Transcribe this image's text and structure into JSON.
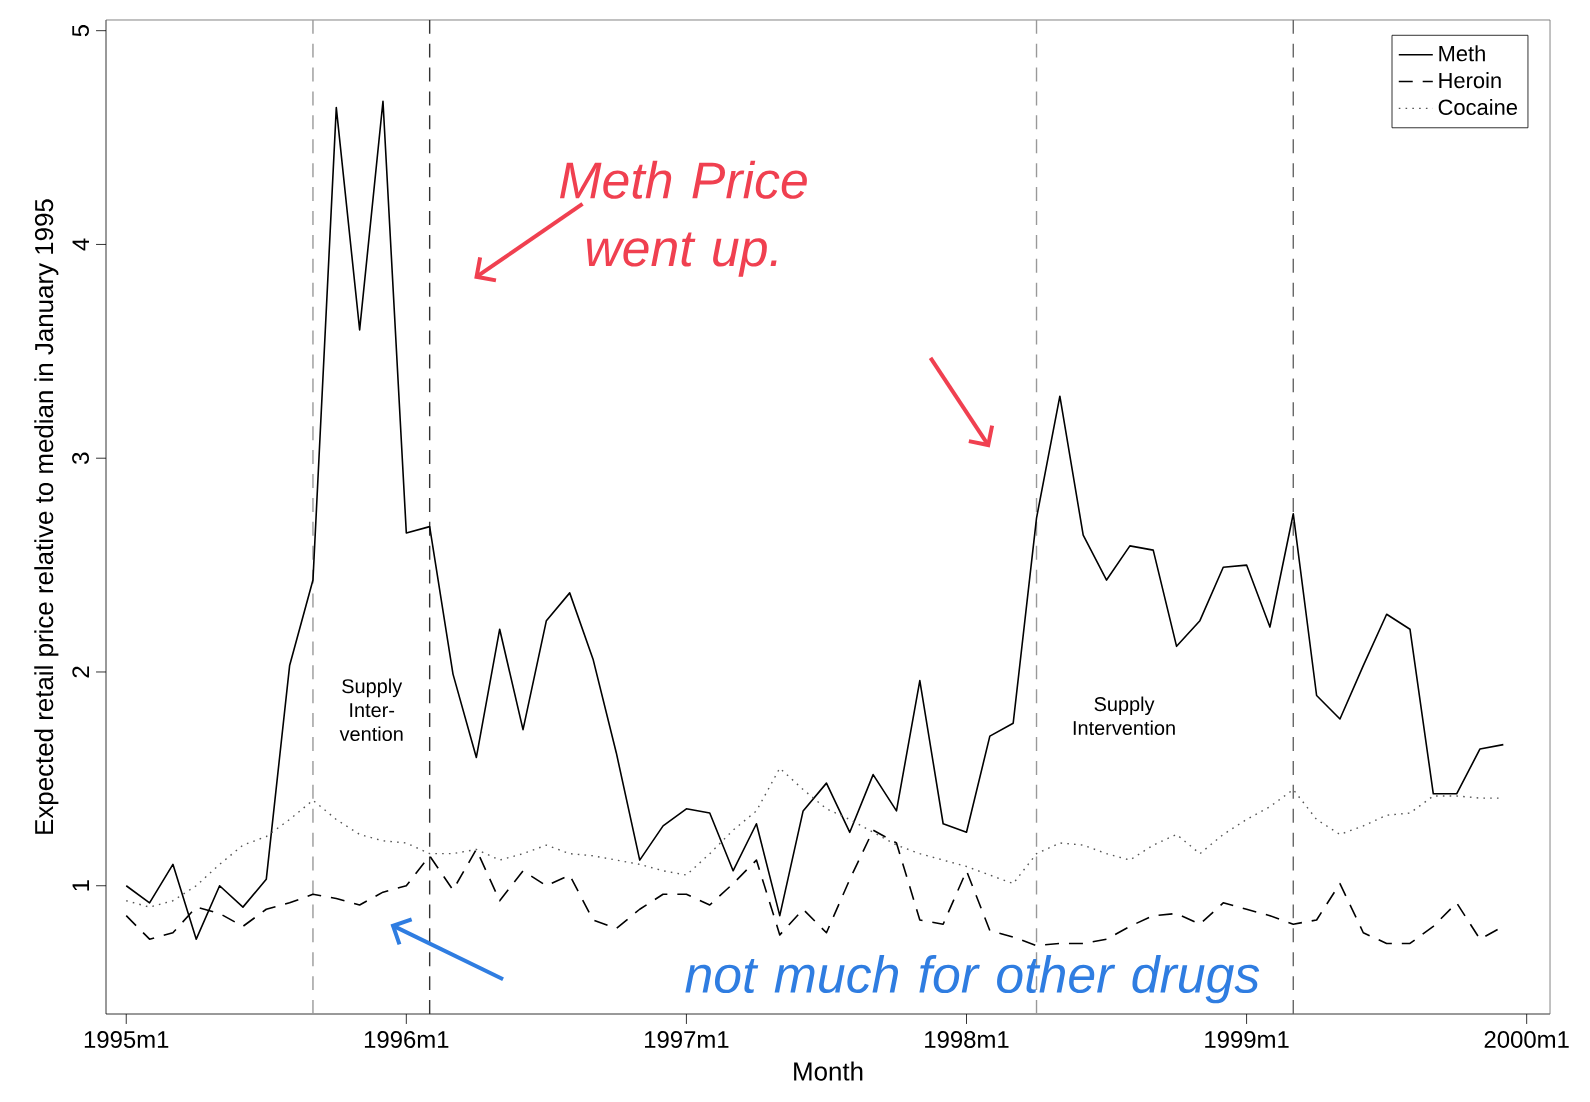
{
  "chart_data": {
    "type": "line",
    "xlabel": "Month",
    "ylabel": "Expected retail price relative to median in January 1995",
    "x": [
      "1995-01",
      "1995-02",
      "1995-03",
      "1995-04",
      "1995-05",
      "1995-06",
      "1995-07",
      "1995-08",
      "1995-09",
      "1995-10",
      "1995-11",
      "1995-12",
      "1996-01",
      "1996-02",
      "1996-03",
      "1996-04",
      "1996-05",
      "1996-06",
      "1996-07",
      "1996-08",
      "1996-09",
      "1996-10",
      "1996-11",
      "1996-12",
      "1997-01",
      "1997-02",
      "1997-03",
      "1997-04",
      "1997-05",
      "1997-06",
      "1997-07",
      "1997-08",
      "1997-09",
      "1997-10",
      "1997-11",
      "1997-12",
      "1998-01",
      "1998-02",
      "1998-03",
      "1998-04",
      "1998-05",
      "1998-06",
      "1998-07",
      "1998-08",
      "1998-09",
      "1998-10",
      "1998-11",
      "1998-12",
      "1999-01",
      "1999-02",
      "1999-03",
      "1999-04",
      "1999-05",
      "1999-06",
      "1999-07",
      "1999-08",
      "1999-09",
      "1999-10",
      "1999-11",
      "1999-12"
    ],
    "series": [
      {
        "name": "Meth",
        "color": "#000000",
        "line_style": "solid",
        "values": [
          1.0,
          0.92,
          1.1,
          0.75,
          1.0,
          0.9,
          1.03,
          2.03,
          2.43,
          4.64,
          3.6,
          4.67,
          2.65,
          2.68,
          1.99,
          1.6,
          2.2,
          1.73,
          2.24,
          2.37,
          2.06,
          1.62,
          1.12,
          1.28,
          1.36,
          1.34,
          1.07,
          1.29,
          0.86,
          1.35,
          1.48,
          1.25,
          1.52,
          1.35,
          1.96,
          1.29,
          1.25,
          1.7,
          1.76,
          2.72,
          3.29,
          2.64,
          2.43,
          2.59,
          2.57,
          2.12,
          2.24,
          2.49,
          2.5,
          2.21,
          2.74,
          1.89,
          1.78,
          2.03,
          2.27,
          2.2,
          1.43,
          1.43,
          1.64,
          1.66
        ]
      },
      {
        "name": "Heroin",
        "color": "#000000",
        "line_style": "dashed",
        "values": [
          0.86,
          0.75,
          0.78,
          0.9,
          0.87,
          0.81,
          0.89,
          0.92,
          0.96,
          0.94,
          0.91,
          0.97,
          1.0,
          1.14,
          0.98,
          1.17,
          0.93,
          1.07,
          1.0,
          1.05,
          0.84,
          0.8,
          0.89,
          0.96,
          0.96,
          0.91,
          1.01,
          1.12,
          0.77,
          0.89,
          0.78,
          1.03,
          1.26,
          1.2,
          0.84,
          0.82,
          1.07,
          0.79,
          0.76,
          0.72,
          0.73,
          0.73,
          0.75,
          0.81,
          0.86,
          0.87,
          0.82,
          0.92,
          0.89,
          0.86,
          0.82,
          0.84,
          1.01,
          0.78,
          0.73,
          0.73,
          0.81,
          0.92,
          0.75,
          0.81
        ]
      },
      {
        "name": "Cocaine",
        "color": "#555555",
        "line_style": "dotted",
        "values": [
          0.93,
          0.9,
          0.93,
          1.0,
          1.1,
          1.19,
          1.23,
          1.31,
          1.4,
          1.31,
          1.24,
          1.21,
          1.2,
          1.15,
          1.15,
          1.17,
          1.12,
          1.15,
          1.19,
          1.15,
          1.14,
          1.12,
          1.1,
          1.07,
          1.05,
          1.15,
          1.26,
          1.35,
          1.55,
          1.45,
          1.36,
          1.31,
          1.25,
          1.19,
          1.15,
          1.12,
          1.09,
          1.05,
          1.01,
          1.15,
          1.2,
          1.19,
          1.15,
          1.12,
          1.19,
          1.24,
          1.15,
          1.24,
          1.31,
          1.37,
          1.45,
          1.31,
          1.24,
          1.28,
          1.33,
          1.34,
          1.42,
          1.42,
          1.41,
          1.41
        ]
      }
    ],
    "xlim": [
      "1994-12-05",
      "2000-02-01"
    ],
    "xticks": [
      {
        "value": "1995-01",
        "label": "1995m1"
      },
      {
        "value": "1996-01",
        "label": "1996m1"
      },
      {
        "value": "1997-01",
        "label": "1997m1"
      },
      {
        "value": "1998-01",
        "label": "1998m1"
      },
      {
        "value": "1999-01",
        "label": "1999m1"
      },
      {
        "value": "2000-01",
        "label": "2000m1"
      }
    ],
    "ylim": [
      0.4,
      5.05
    ],
    "yticks": [
      1,
      2,
      3,
      4,
      5
    ],
    "ref_lines": [
      {
        "axis": "x",
        "value": "1995-09",
        "label": null,
        "color": "#999999",
        "line_style": "dashed"
      },
      {
        "axis": "x",
        "value": "1996-02",
        "label": null,
        "color": "#333333",
        "line_style": "dashed"
      },
      {
        "axis": "x",
        "value": "1998-04",
        "label": null,
        "color": "#999999",
        "line_style": "dashed"
      },
      {
        "axis": "x",
        "value": "1999-03",
        "label": null,
        "color": "#666666",
        "line_style": "dashed"
      }
    ],
    "annotations": [
      "Supply Inter-vention",
      "Supply Intervention",
      "Meth Price went up.",
      "not much for other drugs"
    ],
    "legend": "top right",
    "grid": false
  }
}
